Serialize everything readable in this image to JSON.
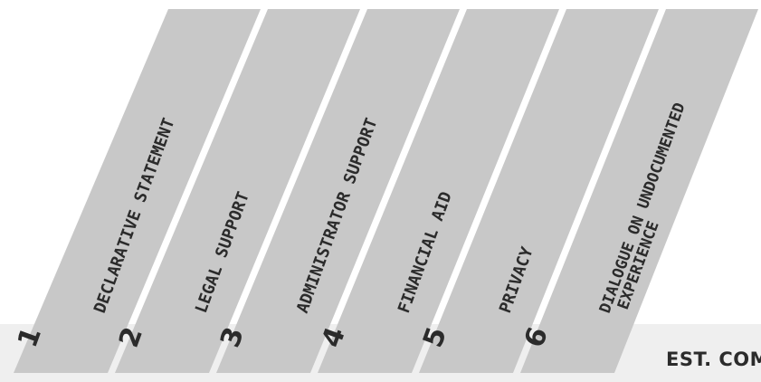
{
  "colors": {
    "panel": "#c8c8c8",
    "band": "#efefef",
    "text": "#2b2b2b"
  },
  "steps": [
    {
      "number": "1",
      "lines": [
        "DECLARATIVE STATEMENT"
      ]
    },
    {
      "number": "2",
      "lines": [
        "LEGAL SUPPORT"
      ]
    },
    {
      "number": "3",
      "lines": [
        "ADMINISTRATOR SUPPORT"
      ]
    },
    {
      "number": "4",
      "lines": [
        "FINANCIAL AID"
      ]
    },
    {
      "number": "5",
      "lines": [
        "PRIVACY"
      ]
    },
    {
      "number": "6",
      "lines": [
        "DIALOGUE ON UNDOCUMENTED",
        "EXPERIENCE"
      ]
    }
  ],
  "footer_text": "EST. COMP"
}
